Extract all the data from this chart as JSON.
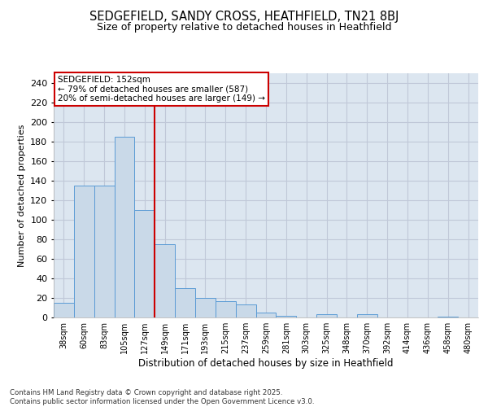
{
  "title_line1": "SEDGEFIELD, SANDY CROSS, HEATHFIELD, TN21 8BJ",
  "title_line2": "Size of property relative to detached houses in Heathfield",
  "xlabel": "Distribution of detached houses by size in Heathfield",
  "ylabel": "Number of detached properties",
  "categories": [
    "38sqm",
    "60sqm",
    "83sqm",
    "105sqm",
    "127sqm",
    "149sqm",
    "171sqm",
    "193sqm",
    "215sqm",
    "237sqm",
    "259sqm",
    "281sqm",
    "303sqm",
    "325sqm",
    "348sqm",
    "370sqm",
    "392sqm",
    "414sqm",
    "436sqm",
    "458sqm",
    "480sqm"
  ],
  "values": [
    15,
    135,
    135,
    185,
    110,
    75,
    30,
    20,
    17,
    13,
    5,
    2,
    0,
    3,
    0,
    3,
    0,
    0,
    0,
    1,
    0
  ],
  "bar_color": "#c9d9e8",
  "bar_edge_color": "#5b9bd5",
  "vline_color": "#cc0000",
  "annotation_text": "SEDGEFIELD: 152sqm\n← 79% of detached houses are smaller (587)\n20% of semi-detached houses are larger (149) →",
  "annotation_box_color": "#ffffff",
  "annotation_box_edge": "#cc0000",
  "ylim": [
    0,
    250
  ],
  "yticks": [
    0,
    20,
    40,
    60,
    80,
    100,
    120,
    140,
    160,
    180,
    200,
    220,
    240
  ],
  "grid_color": "#c0c8d8",
  "background_color": "#dce6f0",
  "footer_line1": "Contains HM Land Registry data © Crown copyright and database right 2025.",
  "footer_line2": "Contains public sector information licensed under the Open Government Licence v3.0."
}
